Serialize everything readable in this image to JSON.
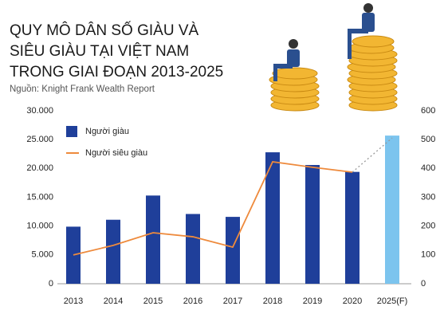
{
  "chart_data": {
    "type": "bar",
    "title_lines": [
      "QUY MÔ DÂN SỐ GIÀU VÀ",
      "SIÊU GIÀU TẠI VIỆT NAM",
      "TRONG GIAI ĐOẠN 2013-2025"
    ],
    "source": "Nguồn: Knight Frank Wealth Report",
    "categories": [
      "2013",
      "2014",
      "2015",
      "2016",
      "2017",
      "2018",
      "2019",
      "2020",
      "2025(F)"
    ],
    "series": [
      {
        "name": "Người giàu",
        "type": "bar",
        "color": "#1f3f9a",
        "forecast_color": "#7cc4ee",
        "values": [
          9900,
          11100,
          15300,
          12100,
          11600,
          22800,
          20600,
          19400,
          25700
        ]
      },
      {
        "name": "Người siêu giàu",
        "type": "line",
        "axis": "y2",
        "color": "#ee8a3c",
        "forecast_dashed": true,
        "values": [
          100,
          133,
          177,
          163,
          127,
          423,
          404,
          387,
          506
        ]
      }
    ],
    "ylim": [
      0,
      30000
    ],
    "yticks": [
      0,
      {
        "value": 5000,
        "label": "5.000"
      },
      {
        "value": 10000,
        "label": "10.000"
      },
      {
        "value": 15000,
        "label": "15.000"
      },
      {
        "value": 20000,
        "label": "20.000"
      },
      {
        "value": 25000,
        "label": "25.000"
      },
      {
        "value": 30000,
        "label": "30.000"
      }
    ],
    "y2lim": [
      0,
      600
    ],
    "y2ticks": [
      0,
      100,
      200,
      300,
      400,
      500,
      600
    ],
    "legend": "top-left"
  }
}
